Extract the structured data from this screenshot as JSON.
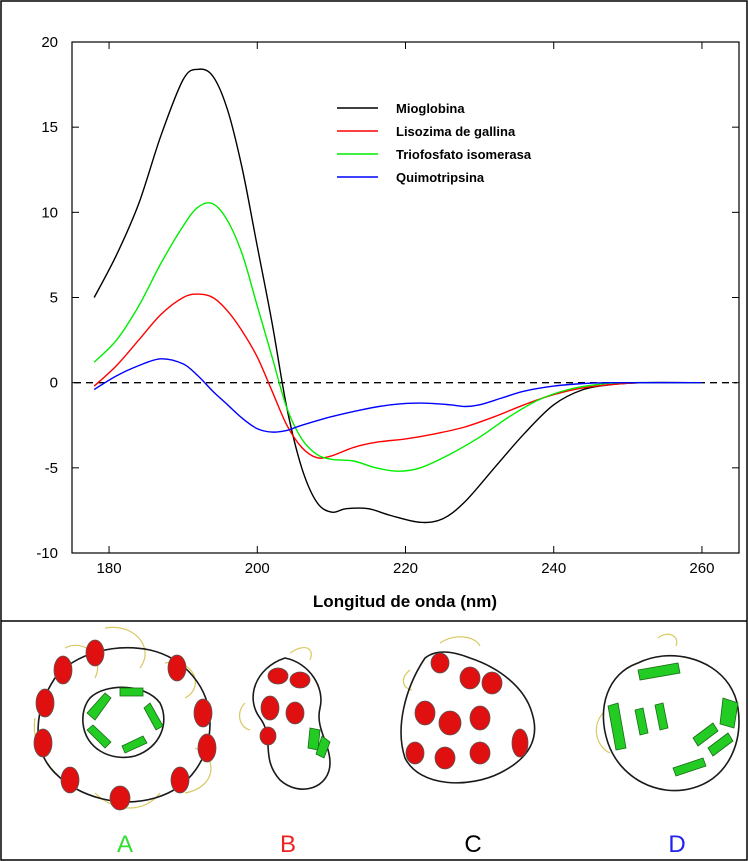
{
  "chart_data": {
    "type": "line",
    "title": "",
    "xlabel": "Longitud de onda (nm)",
    "ylabel": "",
    "xlim": [
      175,
      265
    ],
    "ylim": [
      -10,
      20
    ],
    "xticks": [
      180,
      200,
      220,
      240,
      260
    ],
    "yticks": [
      -10,
      -5,
      0,
      5,
      10,
      15,
      20
    ],
    "grid": false,
    "legend_position": "top-center",
    "reference_line": {
      "y": 0,
      "style": "dashed"
    },
    "series": [
      {
        "name": "Mioglobina",
        "color": "#000000",
        "points": [
          [
            178,
            5.0
          ],
          [
            181,
            7.5
          ],
          [
            184,
            10.5
          ],
          [
            187,
            14.5
          ],
          [
            190,
            17.8
          ],
          [
            192,
            18.4
          ],
          [
            194,
            18.0
          ],
          [
            196,
            16.0
          ],
          [
            198,
            12.5
          ],
          [
            200,
            8.0
          ],
          [
            202,
            3.5
          ],
          [
            204,
            -1.5
          ],
          [
            206,
            -5.0
          ],
          [
            208,
            -7.0
          ],
          [
            210,
            -7.6
          ],
          [
            212,
            -7.4
          ],
          [
            215,
            -7.4
          ],
          [
            218,
            -7.8
          ],
          [
            222,
            -8.2
          ],
          [
            225,
            -8.0
          ],
          [
            228,
            -7.0
          ],
          [
            232,
            -5.0
          ],
          [
            236,
            -3.0
          ],
          [
            240,
            -1.3
          ],
          [
            244,
            -0.4
          ],
          [
            248,
            -0.1
          ],
          [
            252,
            0.0
          ],
          [
            260,
            0.0
          ]
        ]
      },
      {
        "name": "Lisozima de gallina",
        "color": "#ff0000",
        "points": [
          [
            178,
            -0.2
          ],
          [
            181,
            1.0
          ],
          [
            184,
            2.5
          ],
          [
            187,
            4.0
          ],
          [
            190,
            5.0
          ],
          [
            192,
            5.2
          ],
          [
            194,
            5.0
          ],
          [
            196,
            4.2
          ],
          [
            198,
            3.0
          ],
          [
            200,
            1.5
          ],
          [
            202,
            -0.5
          ],
          [
            204,
            -2.5
          ],
          [
            206,
            -3.8
          ],
          [
            208,
            -4.4
          ],
          [
            210,
            -4.3
          ],
          [
            213,
            -3.8
          ],
          [
            216,
            -3.5
          ],
          [
            220,
            -3.3
          ],
          [
            224,
            -3.0
          ],
          [
            228,
            -2.6
          ],
          [
            232,
            -2.0
          ],
          [
            236,
            -1.3
          ],
          [
            240,
            -0.7
          ],
          [
            244,
            -0.3
          ],
          [
            248,
            -0.1
          ],
          [
            252,
            0.0
          ],
          [
            260,
            0.0
          ]
        ]
      },
      {
        "name": "Triofosfato isomerasa",
        "color": "#00ee00",
        "points": [
          [
            178,
            1.2
          ],
          [
            181,
            2.5
          ],
          [
            184,
            4.5
          ],
          [
            187,
            7.0
          ],
          [
            190,
            9.2
          ],
          [
            192,
            10.3
          ],
          [
            194,
            10.5
          ],
          [
            196,
            9.5
          ],
          [
            198,
            7.5
          ],
          [
            200,
            4.5
          ],
          [
            202,
            1.5
          ],
          [
            204,
            -1.5
          ],
          [
            206,
            -3.3
          ],
          [
            208,
            -4.2
          ],
          [
            210,
            -4.5
          ],
          [
            213,
            -4.6
          ],
          [
            216,
            -5.0
          ],
          [
            219,
            -5.2
          ],
          [
            222,
            -5.0
          ],
          [
            226,
            -4.2
          ],
          [
            230,
            -3.2
          ],
          [
            234,
            -2.0
          ],
          [
            238,
            -1.0
          ],
          [
            242,
            -0.4
          ],
          [
            246,
            -0.1
          ],
          [
            250,
            0.0
          ],
          [
            260,
            0.0
          ]
        ]
      },
      {
        "name": "Quimotripsina",
        "color": "#0000ff",
        "points": [
          [
            178,
            -0.4
          ],
          [
            181,
            0.4
          ],
          [
            184,
            1.0
          ],
          [
            187,
            1.4
          ],
          [
            190,
            1.1
          ],
          [
            192,
            0.4
          ],
          [
            194,
            -0.5
          ],
          [
            196,
            -1.3
          ],
          [
            198,
            -2.1
          ],
          [
            200,
            -2.7
          ],
          [
            202,
            -2.9
          ],
          [
            204,
            -2.8
          ],
          [
            206,
            -2.5
          ],
          [
            210,
            -2.0
          ],
          [
            214,
            -1.6
          ],
          [
            218,
            -1.3
          ],
          [
            222,
            -1.2
          ],
          [
            226,
            -1.3
          ],
          [
            228,
            -1.4
          ],
          [
            230,
            -1.3
          ],
          [
            233,
            -0.9
          ],
          [
            236,
            -0.5
          ],
          [
            240,
            -0.2
          ],
          [
            244,
            -0.05
          ],
          [
            248,
            0.0
          ],
          [
            260,
            0.0
          ]
        ]
      }
    ]
  },
  "structures": {
    "labels": [
      {
        "text": "A",
        "color": "#33dd33"
      },
      {
        "text": "B",
        "color": "#ee2222"
      },
      {
        "text": "C",
        "color": "#000000"
      },
      {
        "text": "D",
        "color": "#2222ee"
      }
    ],
    "colors": {
      "helix": "#e01010",
      "sheet": "#22cc22",
      "coil": "#d8c860"
    }
  }
}
